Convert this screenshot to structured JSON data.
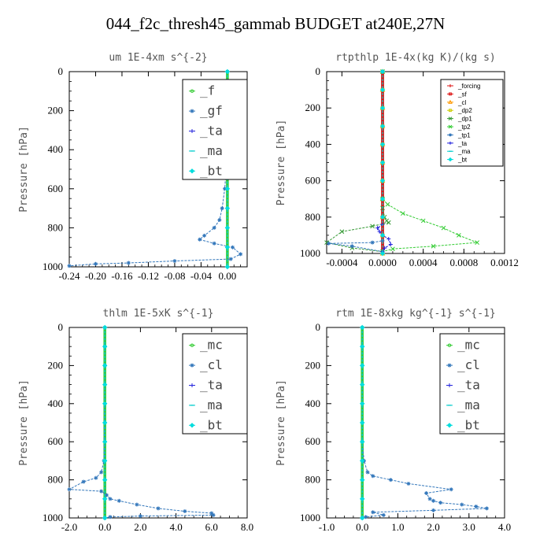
{
  "figure_title": "044_f2c_thresh45_gammab  BUDGET at240E,27N",
  "colors": {
    "red": "#dd1111",
    "orange": "#ff9900",
    "yellow": "#cccc00",
    "darkgreen": "#339933",
    "green": "#33cc33",
    "steel": "#3377bb",
    "blue": "#2222dd",
    "cyan": "#00cccc",
    "aqua": "#00dddd"
  },
  "chart_data": [
    {
      "type": "line",
      "title": "um  1E-4xm s^{-2}",
      "ylabel": "Pressure [hPa]",
      "xlim": [
        -0.24,
        0.03
      ],
      "ylim": [
        1000,
        0
      ],
      "xticks": [
        "-0.24",
        "-0.20",
        "-0.16",
        "-0.12",
        "-0.08",
        "-0.04",
        "0.00"
      ],
      "xtick_values": [
        -0.24,
        -0.2,
        -0.16,
        -0.12,
        -0.08,
        -0.04,
        0.0
      ],
      "yticks": [
        "0",
        "200",
        "400",
        "600",
        "800",
        "1000"
      ],
      "legend_style": "big",
      "legend_position": "top-right",
      "series": [
        {
          "name": "_f",
          "color": "green",
          "marker": "circle",
          "x": [
            0,
            0,
            0,
            0,
            0,
            0,
            0,
            0,
            0,
            0,
            0
          ],
          "y": [
            0,
            100,
            200,
            300,
            400,
            500,
            600,
            700,
            800,
            900,
            1000
          ]
        },
        {
          "name": "_gf",
          "color": "steel",
          "marker": "asterisk",
          "x": [
            0.0,
            0.0,
            0.002,
            0.002,
            0.0,
            -0.002,
            -0.004,
            -0.008,
            -0.012,
            -0.02,
            -0.035,
            -0.042,
            -0.02,
            0.008,
            0.02,
            0.005,
            -0.08,
            -0.15,
            -0.2,
            -0.24
          ],
          "y": [
            0,
            100,
            200,
            300,
            400,
            500,
            600,
            700,
            760,
            800,
            840,
            860,
            880,
            900,
            935,
            960,
            970,
            980,
            985,
            995
          ]
        },
        {
          "name": "_ta",
          "color": "blue",
          "marker": "plus",
          "x": [
            0,
            0,
            0,
            0,
            0,
            0,
            0,
            0,
            0,
            0,
            0
          ],
          "y": [
            0,
            100,
            200,
            300,
            400,
            500,
            600,
            700,
            800,
            900,
            1000
          ]
        },
        {
          "name": "_ma",
          "color": "cyan",
          "marker": "dash",
          "x": [
            0,
            0,
            0,
            0,
            0,
            0,
            0,
            0,
            0,
            0,
            0
          ],
          "y": [
            0,
            100,
            200,
            300,
            400,
            500,
            600,
            700,
            800,
            900,
            1000
          ]
        },
        {
          "name": "_bt",
          "color": "aqua",
          "marker": "diamond",
          "x": [
            0,
            0,
            0,
            0,
            0,
            0,
            0,
            0,
            0,
            0,
            0
          ],
          "y": [
            0,
            100,
            200,
            300,
            400,
            500,
            600,
            700,
            800,
            900,
            1000
          ]
        }
      ]
    },
    {
      "type": "line",
      "title": "rtpthlp  1E-4x(kg K)/(kg s)",
      "ylabel": "Pressure [hPa]",
      "xlim": [
        -0.00055,
        0.0012
      ],
      "ylim": [
        1000,
        0
      ],
      "xticks": [
        "-0.0004",
        "0.0000",
        "0.0004",
        "0.0008",
        "0.0012"
      ],
      "xtick_values": [
        -0.0004,
        0.0,
        0.0004,
        0.0008,
        0.0012
      ],
      "yticks": [
        "0",
        "200",
        "400",
        "600",
        "800",
        "1000"
      ],
      "legend_style": "small",
      "legend_position": "top-right",
      "series": [
        {
          "name": "_forcing",
          "color": "red",
          "marker": "plus",
          "x": [
            0,
            0,
            0,
            0,
            0,
            0,
            0,
            0,
            0,
            0,
            0
          ],
          "y": [
            0,
            100,
            200,
            300,
            400,
            500,
            600,
            700,
            800,
            900,
            1000
          ]
        },
        {
          "name": "_sf",
          "color": "red",
          "marker": "square",
          "x": [
            0,
            0,
            0,
            0,
            0,
            0,
            0,
            0,
            0,
            0,
            0
          ],
          "y": [
            0,
            100,
            200,
            300,
            400,
            500,
            600,
            700,
            800,
            900,
            1000
          ]
        },
        {
          "name": "_cl",
          "color": "orange",
          "marker": "triangle",
          "x": [
            0,
            0,
            0,
            0,
            0,
            0,
            0,
            0,
            0,
            0,
            0
          ],
          "y": [
            0,
            100,
            200,
            300,
            400,
            500,
            600,
            700,
            800,
            900,
            1000
          ]
        },
        {
          "name": "_dp2",
          "color": "yellow",
          "marker": "square",
          "x": [
            0,
            0,
            0,
            0,
            0,
            0,
            0,
            0,
            0,
            0,
            0
          ],
          "y": [
            0,
            100,
            200,
            300,
            400,
            500,
            600,
            700,
            800,
            900,
            1000
          ]
        },
        {
          "name": "_dp1",
          "color": "darkgreen",
          "marker": "x",
          "x": [
            0,
            0,
            0,
            2e-05,
            4e-05,
            6e-05,
            -0.0001,
            -0.0004,
            -0.00055,
            -0.0003,
            0.0
          ],
          "y": [
            0,
            700,
            750,
            800,
            820,
            830,
            850,
            880,
            940,
            970,
            990
          ]
        },
        {
          "name": "_tp2",
          "color": "green",
          "marker": "x",
          "x": [
            0,
            0,
            5e-05,
            0.0002,
            0.0004,
            0.0006,
            0.00075,
            0.00093,
            0.0005,
            0.0001,
            0.0
          ],
          "y": [
            0,
            700,
            730,
            780,
            820,
            860,
            900,
            940,
            960,
            975,
            990
          ]
        },
        {
          "name": "_tp1",
          "color": "steel",
          "marker": "asterisk",
          "x": [
            0,
            0,
            0,
            0,
            -0.0001,
            -0.00053,
            -0.0003,
            0
          ],
          "y": [
            0,
            800,
            900,
            930,
            940,
            945,
            960,
            990
          ]
        },
        {
          "name": "_ta",
          "color": "blue",
          "marker": "plus",
          "x": [
            0,
            0,
            -5e-05,
            -3e-05,
            0,
            6e-05,
            8e-05,
            2e-05,
            0
          ],
          "y": [
            0,
            840,
            860,
            880,
            900,
            920,
            950,
            970,
            990
          ]
        },
        {
          "name": "_ma",
          "color": "cyan",
          "marker": "dash",
          "x": [
            0,
            0,
            0,
            0,
            0,
            0,
            0,
            0,
            0,
            0,
            0
          ],
          "y": [
            0,
            100,
            200,
            300,
            400,
            500,
            600,
            700,
            800,
            900,
            1000
          ]
        },
        {
          "name": "_bt",
          "color": "aqua",
          "marker": "diamond",
          "x": [
            0,
            0,
            0,
            0,
            0,
            0,
            0,
            0,
            0,
            0,
            0
          ],
          "y": [
            0,
            100,
            200,
            300,
            400,
            500,
            600,
            700,
            800,
            900,
            1000
          ]
        }
      ]
    },
    {
      "type": "line",
      "title": "thlm  1E-5xK s^{-1}",
      "ylabel": "Pressure [hPa]",
      "xlim": [
        -2.0,
        8.0
      ],
      "ylim": [
        1000,
        0
      ],
      "xticks": [
        "-2.0",
        "0.0",
        "2.0",
        "4.0",
        "6.0",
        "8.0"
      ],
      "xtick_values": [
        -2.0,
        0.0,
        2.0,
        4.0,
        6.0,
        8.0
      ],
      "yticks": [
        "0",
        "200",
        "400",
        "600",
        "800",
        "1000"
      ],
      "legend_style": "big",
      "legend_position": "top-right",
      "series": [
        {
          "name": "_mc",
          "color": "green",
          "marker": "circle",
          "x": [
            0,
            0,
            0,
            0,
            0,
            0,
            0,
            0,
            0,
            0,
            0
          ],
          "y": [
            0,
            100,
            200,
            300,
            400,
            500,
            600,
            700,
            800,
            900,
            1000
          ]
        },
        {
          "name": "_cl",
          "color": "steel",
          "marker": "asterisk",
          "x": [
            0,
            0,
            0,
            -0.05,
            -0.2,
            -0.5,
            -1.2,
            -2.0,
            -0.2,
            0.1,
            0.3,
            0.8,
            1.8,
            3.0,
            4.5,
            6.0,
            6.1,
            2.0,
            0.3,
            0
          ],
          "y": [
            0,
            100,
            200,
            700,
            760,
            790,
            810,
            850,
            860,
            880,
            900,
            910,
            930,
            950,
            965,
            975,
            985,
            990,
            995,
            1000
          ]
        },
        {
          "name": "_ta",
          "color": "blue",
          "marker": "plus",
          "x": [
            0,
            0,
            0,
            0,
            0,
            0,
            0,
            0,
            0,
            0,
            0
          ],
          "y": [
            0,
            100,
            200,
            300,
            400,
            500,
            600,
            700,
            800,
            900,
            1000
          ]
        },
        {
          "name": "_ma",
          "color": "cyan",
          "marker": "dash",
          "x": [
            0,
            0,
            0,
            0,
            0,
            0,
            0,
            0,
            0,
            0,
            0
          ],
          "y": [
            0,
            100,
            200,
            300,
            400,
            500,
            600,
            700,
            800,
            900,
            1000
          ]
        },
        {
          "name": "_bt",
          "color": "aqua",
          "marker": "diamond",
          "x": [
            0,
            0,
            0,
            0,
            0,
            0,
            0,
            0,
            0,
            0,
            0
          ],
          "y": [
            0,
            100,
            200,
            300,
            400,
            500,
            600,
            700,
            800,
            900,
            1000
          ]
        }
      ]
    },
    {
      "type": "line",
      "title": "rtm  1E-8xkg kg^{-1} s^{-1}",
      "ylabel": "Pressure [hPa]",
      "xlim": [
        -1.0,
        4.0
      ],
      "ylim": [
        1000,
        0
      ],
      "xticks": [
        "-1.0",
        "0.0",
        "1.0",
        "2.0",
        "3.0",
        "4.0"
      ],
      "xtick_values": [
        -1.0,
        0.0,
        1.0,
        2.0,
        3.0,
        4.0
      ],
      "yticks": [
        "0",
        "200",
        "400",
        "600",
        "800",
        "1000"
      ],
      "legend_style": "big",
      "legend_position": "top-right",
      "series": [
        {
          "name": "_mc",
          "color": "green",
          "marker": "circle",
          "x": [
            0,
            0,
            0,
            0,
            0,
            0,
            0,
            0,
            0,
            0,
            0
          ],
          "y": [
            0,
            100,
            200,
            300,
            400,
            500,
            600,
            700,
            800,
            900,
            1000
          ]
        },
        {
          "name": "_cl",
          "color": "steel",
          "marker": "asterisk",
          "x": [
            0,
            0,
            0,
            0.05,
            0.15,
            0.3,
            0.8,
            1.3,
            2.5,
            1.8,
            1.9,
            2.0,
            2.2,
            2.8,
            3.2,
            3.5,
            2.0,
            0.3,
            0.6,
            0.1,
            0
          ],
          "y": [
            0,
            100,
            600,
            700,
            760,
            780,
            800,
            820,
            850,
            870,
            900,
            910,
            920,
            930,
            940,
            950,
            960,
            970,
            985,
            995,
            1000
          ]
        },
        {
          "name": "_ta",
          "color": "blue",
          "marker": "plus",
          "x": [
            0,
            0,
            0,
            0,
            0,
            0,
            0,
            0,
            0,
            0,
            0
          ],
          "y": [
            0,
            100,
            200,
            300,
            400,
            500,
            600,
            700,
            800,
            900,
            1000
          ]
        },
        {
          "name": "_ma",
          "color": "cyan",
          "marker": "dash",
          "x": [
            0,
            0,
            0,
            0,
            0,
            0,
            0,
            0,
            0,
            0,
            0
          ],
          "y": [
            0,
            100,
            200,
            300,
            400,
            500,
            600,
            700,
            800,
            900,
            1000
          ]
        },
        {
          "name": "_bt",
          "color": "aqua",
          "marker": "diamond",
          "x": [
            0,
            0,
            0,
            0,
            0,
            0,
            0,
            0,
            0,
            0,
            0
          ],
          "y": [
            0,
            100,
            200,
            300,
            400,
            500,
            600,
            700,
            800,
            900,
            1000
          ]
        }
      ]
    }
  ]
}
